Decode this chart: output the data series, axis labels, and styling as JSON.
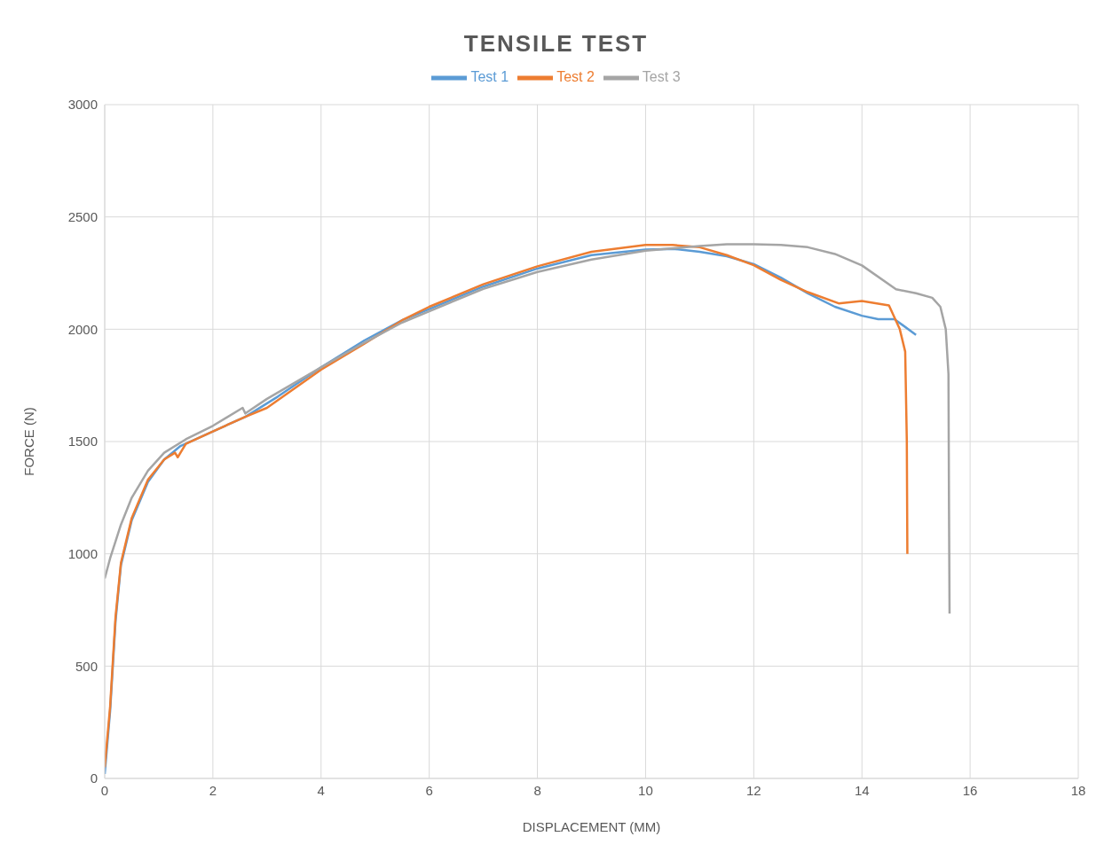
{
  "chart_data": {
    "type": "line",
    "title": "TENSILE TEST",
    "xlabel": "DISPLACEMENT (MM)",
    "ylabel": "FORCE (N)",
    "xlim": [
      0,
      18
    ],
    "xticks": [
      0,
      2,
      4,
      6,
      8,
      10,
      12,
      14,
      16,
      18
    ],
    "ylim": [
      0,
      3000
    ],
    "yticks": [
      0,
      500,
      1000,
      1500,
      2000,
      2500,
      3000
    ],
    "grid": true,
    "legend": "top",
    "marker": "none",
    "line_style": "solid",
    "series": [
      {
        "name": "Test 1",
        "color": "#5b9bd5",
        "x": [
          0,
          0.1,
          0.2,
          0.3,
          0.5,
          0.8,
          1.1,
          1.4,
          2,
          2.6,
          3.2,
          4,
          4.8,
          5.5,
          6,
          7,
          8,
          9,
          10,
          10.5,
          11,
          11.5,
          12,
          12.5,
          13,
          13.5,
          14,
          14.3,
          14.6,
          15
        ],
        "values": [
          20,
          300,
          700,
          950,
          1150,
          1320,
          1420,
          1480,
          1545,
          1610,
          1700,
          1830,
          1950,
          2040,
          2090,
          2190,
          2270,
          2330,
          2355,
          2358,
          2345,
          2325,
          2290,
          2230,
          2160,
          2100,
          2060,
          2045,
          2045,
          1975
        ]
      },
      {
        "name": "Test 2",
        "color": "#ed7d31",
        "x": [
          0,
          0.1,
          0.2,
          0.3,
          0.5,
          0.8,
          1.1,
          1.3,
          1.35,
          1.5,
          2,
          2.6,
          3,
          4,
          4.8,
          5.5,
          6,
          7,
          8,
          9,
          10,
          10.5,
          11,
          11.5,
          12,
          12.5,
          13,
          13.57,
          14,
          14.5,
          14.7,
          14.8,
          14.83,
          14.84
        ],
        "values": [
          50,
          320,
          720,
          960,
          1160,
          1330,
          1420,
          1450,
          1430,
          1490,
          1545,
          1610,
          1650,
          1820,
          1935,
          2040,
          2100,
          2200,
          2280,
          2345,
          2375,
          2375,
          2365,
          2330,
          2285,
          2220,
          2165,
          2115,
          2126,
          2106,
          2000,
          1900,
          1500,
          1000
        ]
      },
      {
        "name": "Test 3",
        "color": "#a5a5a5",
        "x": [
          0,
          0.1,
          0.3,
          0.5,
          0.8,
          1.1,
          1.5,
          2,
          2.55,
          2.6,
          3,
          4,
          4.8,
          5.5,
          6,
          7,
          8,
          9,
          10,
          11,
          11.5,
          12,
          12.5,
          13,
          13.5,
          14,
          14.63,
          15,
          15.3,
          15.45,
          15.55,
          15.6,
          15.61,
          15.62
        ],
        "values": [
          890,
          980,
          1130,
          1250,
          1370,
          1450,
          1510,
          1570,
          1650,
          1625,
          1690,
          1830,
          1940,
          2030,
          2080,
          2180,
          2255,
          2310,
          2350,
          2370,
          2378,
          2378,
          2375,
          2365,
          2335,
          2284,
          2178,
          2160,
          2140,
          2100,
          2000,
          1800,
          1200,
          734
        ]
      }
    ]
  }
}
